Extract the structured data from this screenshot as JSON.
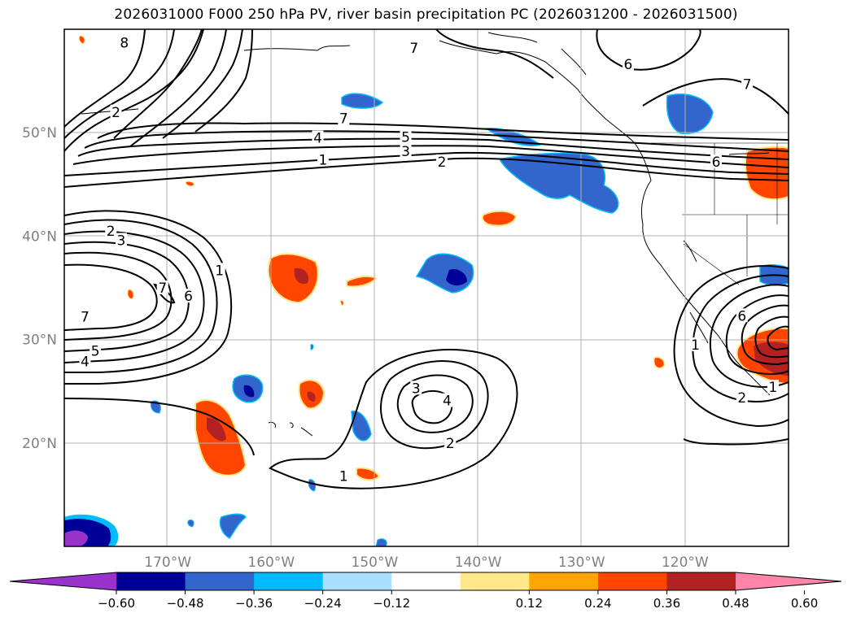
{
  "title": "2026031000 F000 250 hPa PV, river basin precipitation PC (2026031200 - 2026031500)",
  "map": {
    "lon_range": [
      -180,
      -110
    ],
    "lat_range": [
      10,
      60
    ],
    "lat_ticks": [
      {
        "lat": 20,
        "label": "20°N"
      },
      {
        "lat": 30,
        "label": "30°N"
      },
      {
        "lat": 40,
        "label": "40°N"
      },
      {
        "lat": 50,
        "label": "50°N"
      }
    ],
    "lon_ticks": [
      {
        "lon": -170,
        "label": "170°W"
      },
      {
        "lon": -160,
        "label": "160°W"
      },
      {
        "lon": -150,
        "label": "150°W"
      },
      {
        "lon": -140,
        "label": "140°W"
      },
      {
        "lon": -130,
        "label": "130°W"
      },
      {
        "lon": -120,
        "label": "120°W"
      }
    ],
    "grid": true,
    "axis_label_color": "#808080"
  },
  "pv_contour_labels": [
    {
      "text": "8",
      "lon": -174.2,
      "lat": 58.7
    },
    {
      "text": "7",
      "lon": -146.2,
      "lat": 58.2
    },
    {
      "text": "6",
      "lon": -125.5,
      "lat": 56.6
    },
    {
      "text": "7",
      "lon": -114.0,
      "lat": 54.7
    },
    {
      "text": "2",
      "lon": -175.0,
      "lat": 52.0
    },
    {
      "text": "7",
      "lon": -153.0,
      "lat": 51.4
    },
    {
      "text": "4",
      "lon": -155.5,
      "lat": 49.5
    },
    {
      "text": "5",
      "lon": -147.0,
      "lat": 49.6
    },
    {
      "text": "3",
      "lon": -147.0,
      "lat": 48.2
    },
    {
      "text": "2",
      "lon": -143.5,
      "lat": 47.2
    },
    {
      "text": "1",
      "lon": -155.0,
      "lat": 47.4
    },
    {
      "text": "6",
      "lon": -117.0,
      "lat": 47.2
    },
    {
      "text": "2",
      "lon": -175.5,
      "lat": 40.5
    },
    {
      "text": "3",
      "lon": -174.5,
      "lat": 39.6
    },
    {
      "text": "1",
      "lon": -165.0,
      "lat": 36.7
    },
    {
      "text": "7",
      "lon": -170.5,
      "lat": 35.0
    },
    {
      "text": "6",
      "lon": -168.0,
      "lat": 34.2
    },
    {
      "text": "7",
      "lon": -178.0,
      "lat": 32.2
    },
    {
      "text": "5",
      "lon": -177.0,
      "lat": 28.9
    },
    {
      "text": "4",
      "lon": -178.0,
      "lat": 27.9
    },
    {
      "text": "3",
      "lon": -146.0,
      "lat": 25.3
    },
    {
      "text": "4",
      "lon": -143.0,
      "lat": 24.1
    },
    {
      "text": "2",
      "lon": -142.7,
      "lat": 20.0
    },
    {
      "text": "1",
      "lon": -153.0,
      "lat": 16.8
    },
    {
      "text": "1",
      "lon": -119.0,
      "lat": 29.5
    },
    {
      "text": "6",
      "lon": -114.5,
      "lat": 32.3
    },
    {
      "text": "2",
      "lon": -114.5,
      "lat": 24.4
    },
    {
      "text": "1",
      "lon": -111.5,
      "lat": 25.4
    }
  ],
  "colorbar": {
    "tick_labels": [
      "−0.60",
      "−0.48",
      "−0.36",
      "−0.24",
      "−0.12",
      "0.12",
      "0.24",
      "0.36",
      "0.48",
      "0.60"
    ],
    "colors": [
      "#9933cc",
      "#000099",
      "#3366cc",
      "#00bbff",
      "#aae0ff",
      "#ffffff",
      "#ffe88a",
      "#ffa500",
      "#ff4500",
      "#b22222",
      "#ff85a8"
    ],
    "extend": "both"
  }
}
